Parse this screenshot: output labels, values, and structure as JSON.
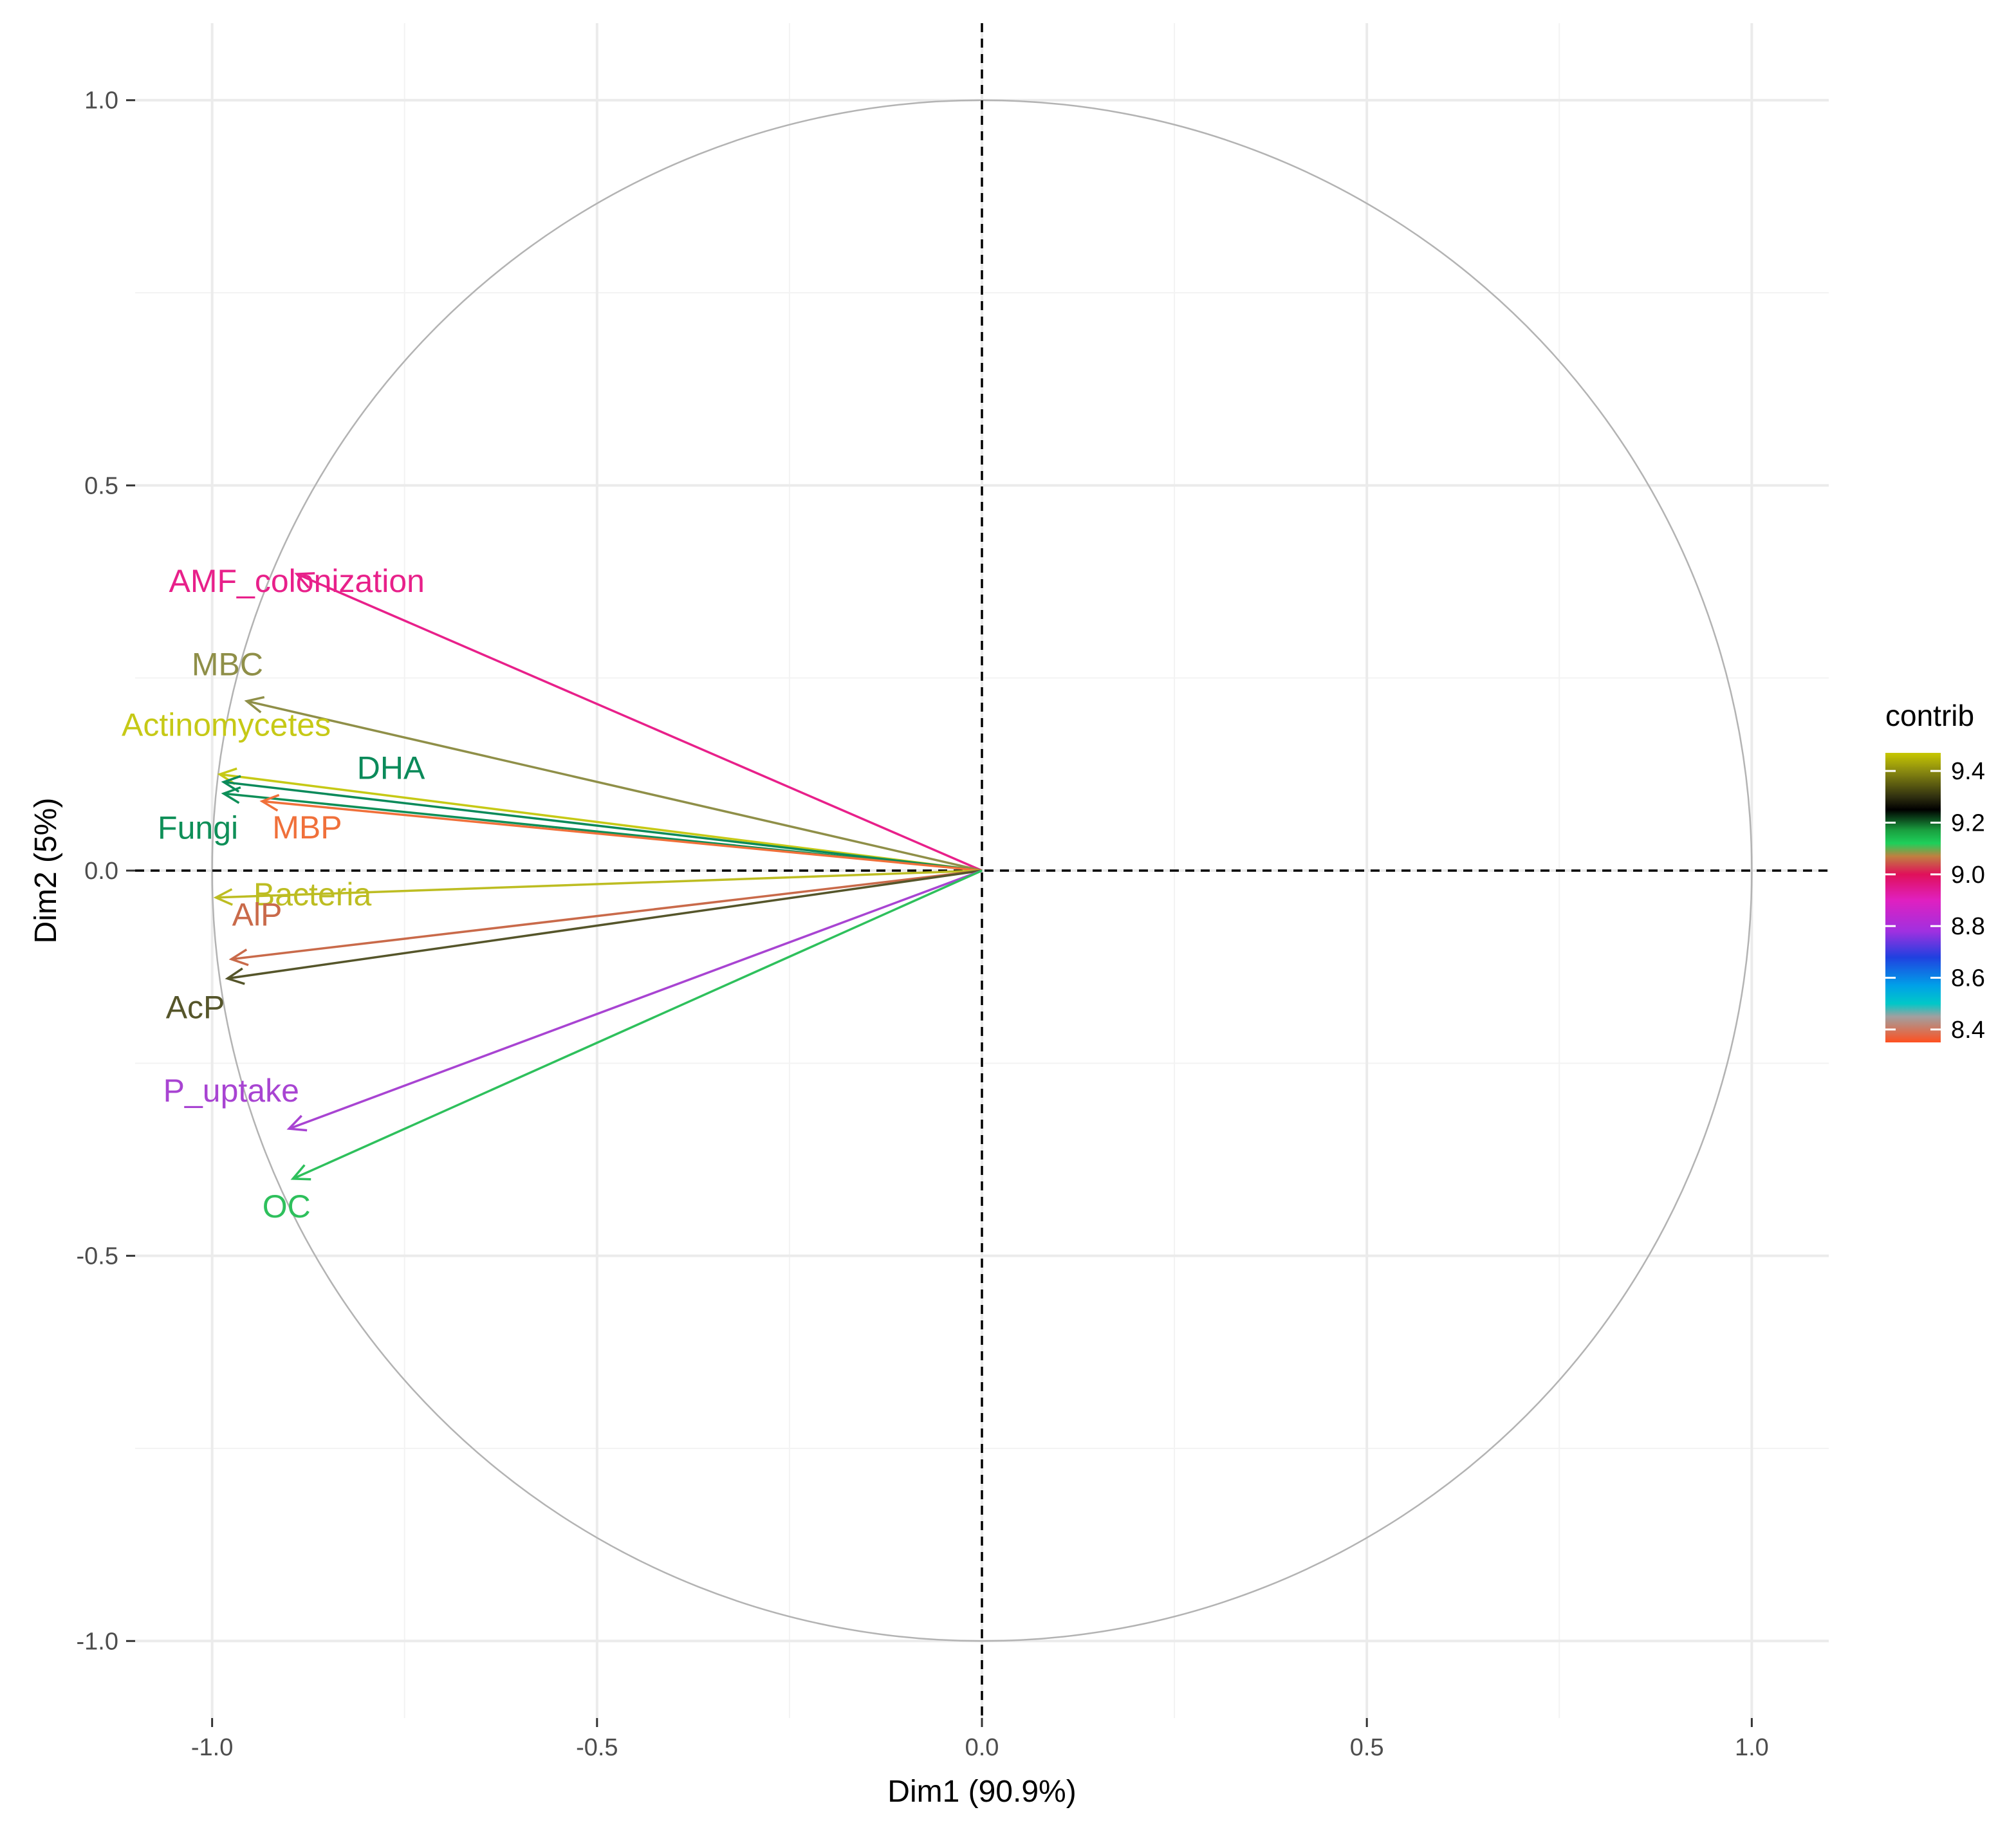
{
  "chart_data": {
    "type": "scatter",
    "subtype": "pca-variable-correlation-circle",
    "title": "",
    "xlabel": "Dim1 (90.9%)",
    "ylabel": "Dim2 (5%)",
    "xlim": [
      -1.1,
      1.1
    ],
    "ylim": [
      -1.1,
      1.1
    ],
    "x_ticks": [
      "-1.0",
      "-0.5",
      "0.0",
      "0.5",
      "1.0"
    ],
    "y_ticks": [
      "1.0",
      "0.5",
      "0.0",
      "-0.5",
      "-1.0"
    ],
    "grid": true,
    "unit_circle": true,
    "reference_lines": "dashed at x=0 and y=0",
    "variables": [
      {
        "name": "AMF_colonization",
        "x": -0.89,
        "y": 0.385,
        "contrib": 8.92,
        "color": "#e8208a"
      },
      {
        "name": "MBC",
        "x": -0.955,
        "y": 0.22,
        "contrib": 9.15,
        "color": "#8f8f48"
      },
      {
        "name": "Actinomycetes",
        "x": -0.99,
        "y": 0.125,
        "contrib": 9.42,
        "color": "#c6c916"
      },
      {
        "name": "DHA",
        "x": -0.985,
        "y": 0.115,
        "contrib": 9.25,
        "color": "#0b8a5a"
      },
      {
        "name": "Fungi",
        "x": -0.985,
        "y": 0.1,
        "contrib": 9.2,
        "color": "#0e8f58"
      },
      {
        "name": "MBP",
        "x": -0.935,
        "y": 0.09,
        "contrib": 8.4,
        "color": "#f0703a"
      },
      {
        "name": "Bacteria",
        "x": -0.995,
        "y": -0.035,
        "contrib": 9.38,
        "color": "#bdbd22"
      },
      {
        "name": "AlP",
        "x": -0.975,
        "y": -0.115,
        "contrib": 8.45,
        "color": "#c96a4a"
      },
      {
        "name": "AcP",
        "x": -0.98,
        "y": -0.14,
        "contrib": 9.3,
        "color": "#55552a"
      },
      {
        "name": "P_uptake",
        "x": -0.9,
        "y": -0.335,
        "contrib": 8.75,
        "color": "#a844d2"
      },
      {
        "name": "OC",
        "x": -0.895,
        "y": -0.4,
        "contrib": 9.1,
        "color": "#2ec05c"
      }
    ],
    "legend": {
      "title": "contrib",
      "placement": "right",
      "ticks": [
        "9.4",
        "9.2",
        "9.0",
        "8.8",
        "8.6",
        "8.4"
      ],
      "range": [
        8.35,
        9.47
      ],
      "gradient_stops": [
        {
          "value": 9.47,
          "color": "#c8c800"
        },
        {
          "value": 9.4,
          "color": "#8a8a10"
        },
        {
          "value": 9.3,
          "color": "#303010"
        },
        {
          "value": 9.25,
          "color": "#000000"
        },
        {
          "value": 9.17,
          "color": "#1aa040"
        },
        {
          "value": 9.12,
          "color": "#1ed05a"
        },
        {
          "value": 9.07,
          "color": "#c08040"
        },
        {
          "value": 9.0,
          "color": "#e0105a"
        },
        {
          "value": 8.9,
          "color": "#e020c0"
        },
        {
          "value": 8.78,
          "color": "#a030e0"
        },
        {
          "value": 8.68,
          "color": "#2040e0"
        },
        {
          "value": 8.57,
          "color": "#00a0e8"
        },
        {
          "value": 8.5,
          "color": "#00c8c8"
        },
        {
          "value": 8.45,
          "color": "#a0a0a0"
        },
        {
          "value": 8.35,
          "color": "#ff5020"
        }
      ]
    }
  }
}
